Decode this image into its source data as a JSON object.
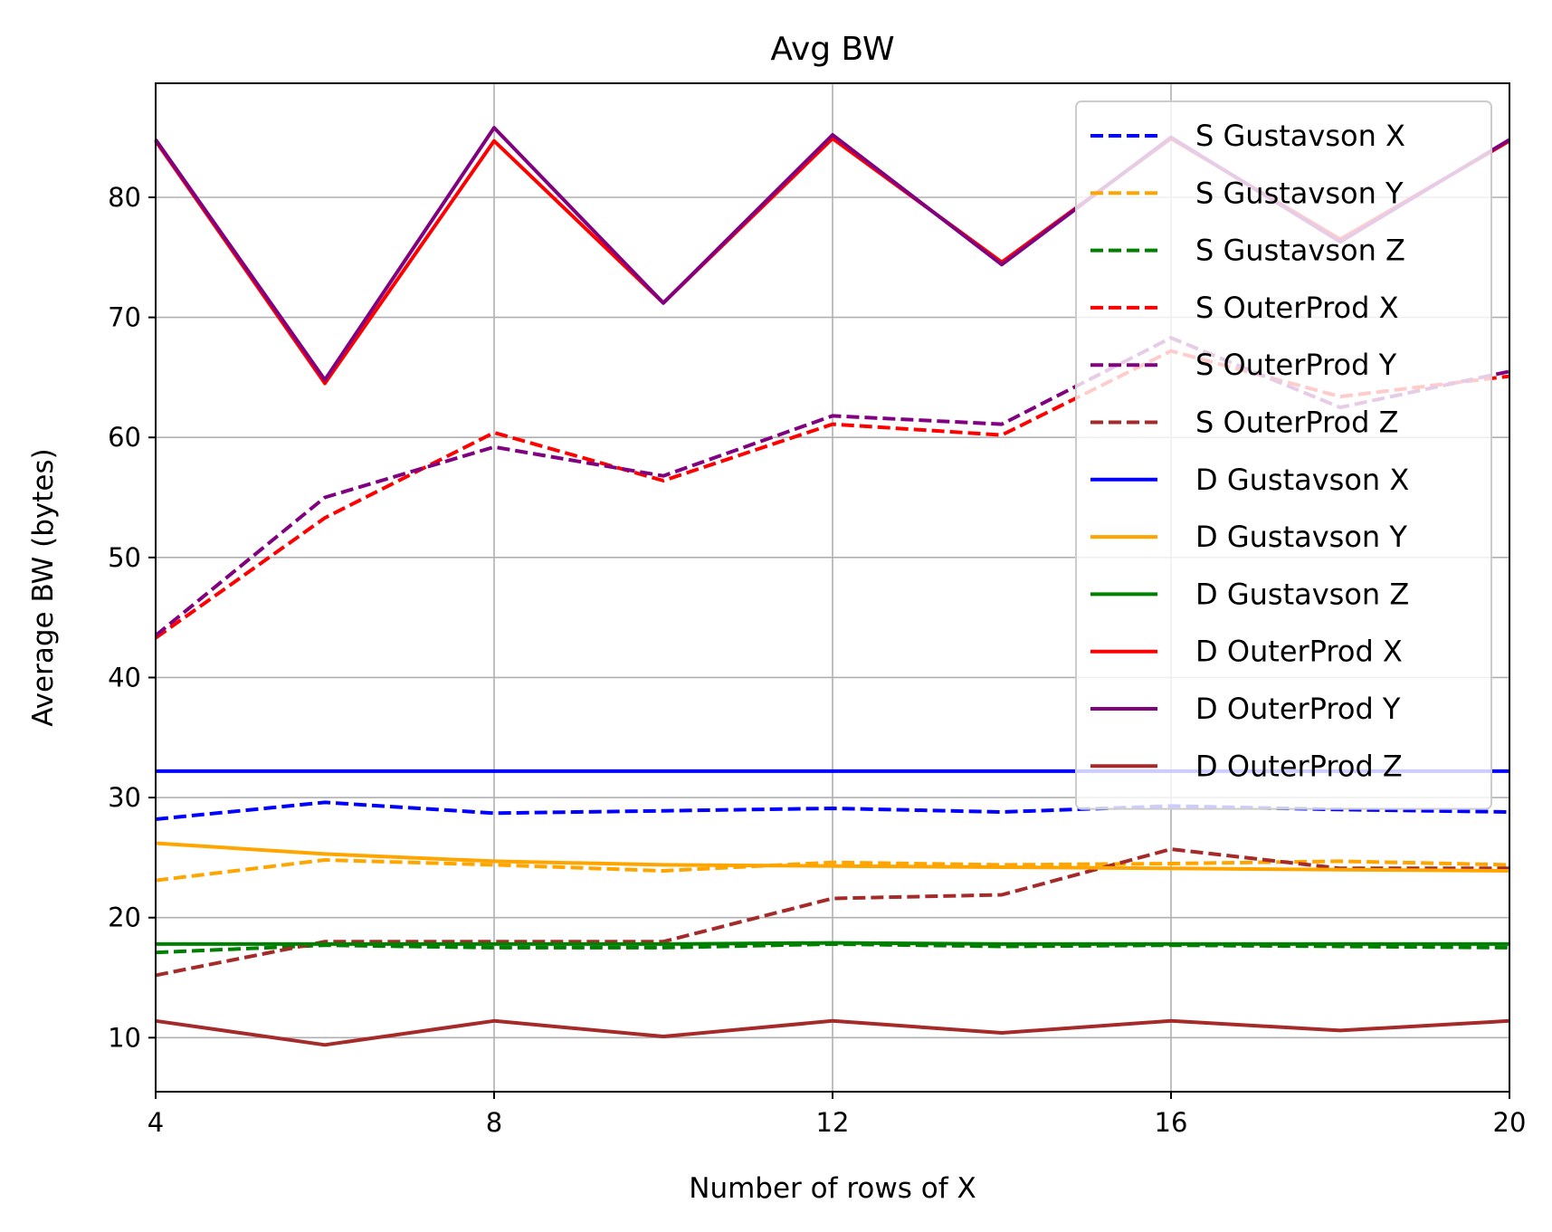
{
  "chart_data": {
    "type": "line",
    "title": "Avg BW",
    "xlabel": "Number of rows of X",
    "ylabel": "Average BW (bytes)",
    "xlim": [
      4,
      20
    ],
    "ylim": [
      5.5,
      89.5
    ],
    "xticks": [
      4,
      8,
      12,
      16,
      20
    ],
    "yticks": [
      10,
      20,
      30,
      40,
      50,
      60,
      70,
      80
    ],
    "grid": true,
    "legend_position": "upper-right",
    "x": [
      4,
      6,
      8,
      10,
      12,
      14,
      16,
      18,
      20
    ],
    "series": [
      {
        "name": "S Gustavson X",
        "style": "dashed",
        "color": "#0000ff",
        "values": [
          28.2,
          29.6,
          28.7,
          28.9,
          29.1,
          28.8,
          29.3,
          29.0,
          28.8
        ]
      },
      {
        "name": "S Gustavson Y",
        "style": "dashed",
        "color": "#ffa500",
        "values": [
          23.1,
          24.8,
          24.4,
          23.9,
          24.6,
          24.4,
          24.5,
          24.7,
          24.4
        ]
      },
      {
        "name": "S Gustavson Z",
        "style": "dashed",
        "color": "#008000",
        "values": [
          17.1,
          17.7,
          17.5,
          17.5,
          17.8,
          17.6,
          17.7,
          17.6,
          17.5
        ]
      },
      {
        "name": "S OuterProd X",
        "style": "dashed",
        "color": "#ff0000",
        "values": [
          43.3,
          53.3,
          60.4,
          56.4,
          61.1,
          60.2,
          67.2,
          63.4,
          65.1
        ]
      },
      {
        "name": "S OuterProd Y",
        "style": "dashed",
        "color": "#800080",
        "values": [
          43.5,
          55.0,
          59.2,
          56.8,
          61.8,
          61.1,
          68.3,
          62.5,
          65.5
        ]
      },
      {
        "name": "S OuterProd Z",
        "style": "dashed",
        "color": "#a52a2a",
        "values": [
          15.2,
          18.0,
          18.0,
          18.0,
          21.6,
          21.9,
          25.7,
          24.1,
          24.1
        ]
      },
      {
        "name": "D Gustavson X",
        "style": "solid",
        "color": "#0000ff",
        "values": [
          32.2,
          32.2,
          32.2,
          32.2,
          32.2,
          32.2,
          32.2,
          32.2,
          32.2
        ]
      },
      {
        "name": "D Gustavson Y",
        "style": "solid",
        "color": "#ffa500",
        "values": [
          26.2,
          25.3,
          24.7,
          24.4,
          24.3,
          24.2,
          24.1,
          24.0,
          23.9
        ]
      },
      {
        "name": "D Gustavson Z",
        "style": "solid",
        "color": "#008000",
        "values": [
          17.8,
          17.8,
          17.8,
          17.8,
          17.9,
          17.8,
          17.8,
          17.8,
          17.8
        ]
      },
      {
        "name": "D OuterProd X",
        "style": "solid",
        "color": "#ff0000",
        "values": [
          84.7,
          64.5,
          84.7,
          71.2,
          84.9,
          74.6,
          84.9,
          76.5,
          84.7
        ]
      },
      {
        "name": "D OuterProd Y",
        "style": "solid",
        "color": "#800080",
        "values": [
          84.8,
          64.8,
          85.8,
          71.2,
          85.2,
          74.4,
          85.0,
          76.3,
          84.8
        ]
      },
      {
        "name": "D OuterProd Z",
        "style": "solid",
        "color": "#a52a2a",
        "values": [
          11.4,
          9.4,
          11.4,
          10.1,
          11.4,
          10.4,
          11.4,
          10.6,
          11.4
        ]
      }
    ]
  }
}
